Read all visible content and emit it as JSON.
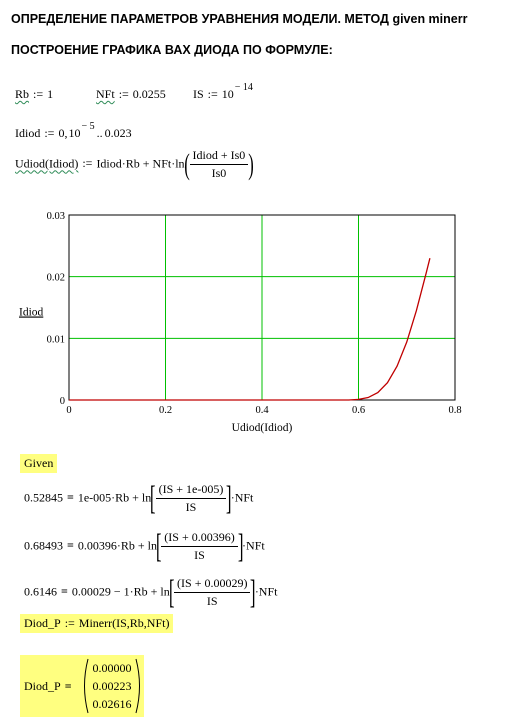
{
  "headings": {
    "line1": "ОПРЕДЕЛЕНИЕ ПАРАМЕТРОВ УРАВНЕНИЯ МОДЕЛИ. МЕТОД given minerr",
    "line2": "ПОСТРОЕНИЕ ГРАФИКА ВАХ ДИОДА ПО ФОРМУЛЕ:"
  },
  "params": {
    "rb_name": "Rb",
    "rb_value": "1",
    "nft_name": "NFt",
    "nft_value": "0.0255",
    "is_name": "IS",
    "is_base": "10",
    "is_exp": "− 14"
  },
  "range": {
    "name": "Idiod",
    "start": "0",
    "step_base": "10",
    "step_exp": "− 5",
    "end": "0.023"
  },
  "func": {
    "lhs": "Udiod(Idiod)",
    "rhs": "Idiod·Rb + NFt·ln",
    "num": "Idiod + Is0",
    "den": "Is0"
  },
  "assign_op": ":=",
  "chart_data": {
    "type": "line",
    "xlabel": "Udiod(Idiod)",
    "ylabel": "Idiod",
    "xlim": [
      0,
      0.8
    ],
    "ylim": [
      0,
      0.03
    ],
    "x_ticks": [
      "0",
      "0.2",
      "0.4",
      "0.6",
      "0.8"
    ],
    "y_ticks": [
      "0",
      "0.01",
      "0.02",
      "0.03"
    ],
    "grid": true,
    "line_color": "#c00000",
    "grid_color": "#00c000",
    "series": [
      {
        "x": [
          0,
          0.58,
          0.6,
          0.62,
          0.64,
          0.66,
          0.68,
          0.7,
          0.72,
          0.74,
          0.748
        ],
        "y": [
          0,
          0,
          0.0001,
          0.0004,
          0.0012,
          0.0028,
          0.0055,
          0.0094,
          0.0145,
          0.0205,
          0.023
        ]
      }
    ]
  },
  "given": {
    "label": "Given",
    "eq1": {
      "lhs": "0.52845",
      "a": "1e-005·Rb + ln",
      "num": "(IS + 1e-005)",
      "den": "IS",
      "b": "·NFt"
    },
    "eq2": {
      "lhs": "0.68493",
      "a": "0.00396·Rb + ln",
      "num": "(IS + 0.00396)",
      "den": "IS",
      "b": "·NFt"
    },
    "eq3": {
      "lhs": "0.6146",
      "a": "0.00029 − 1·Rb + ln",
      "num": "(IS + 0.00029)",
      "den": "IS",
      "b": "·NFt"
    },
    "eq_symbol": "="
  },
  "minerr": {
    "lhs": "Diod_P",
    "rhs": "Minerr(IS,Rb,NFt)"
  },
  "result": {
    "lhs": "Diod_P",
    "eq": "=",
    "values": [
      "0.00000",
      "0.00223",
      "0.02616"
    ]
  },
  "colors": {
    "highlight": "#ffff80",
    "squiggle": "#2e8b57"
  }
}
